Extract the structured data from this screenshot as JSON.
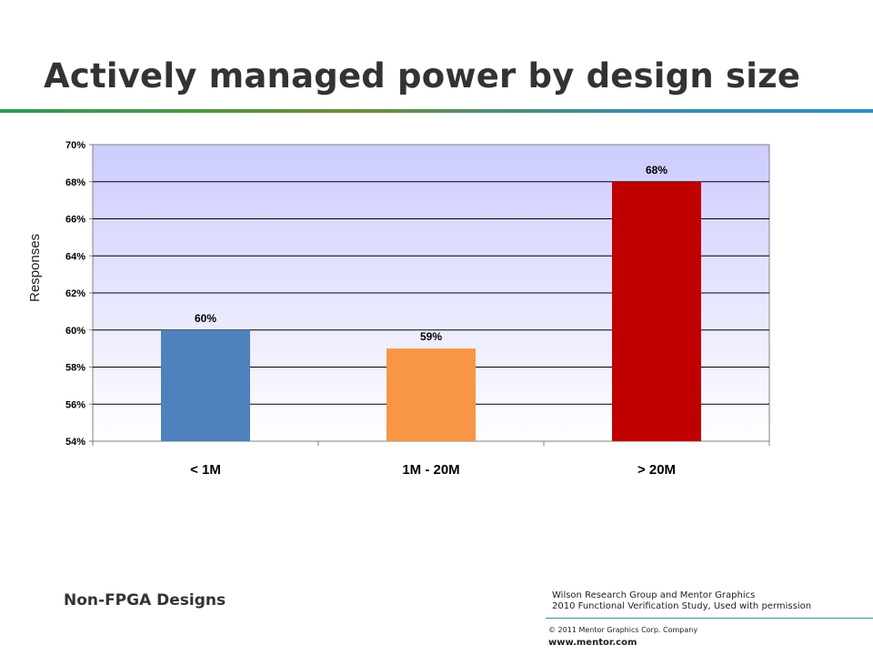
{
  "slide": {
    "title": "Actively managed power by design size",
    "subtitle_left": "Non-FPGA Designs",
    "credit_line1": "Wilson Research Group and Mentor Graphics",
    "credit_line2": "2010 Functional Verification Study,  Used with permission",
    "copyright": "© 2011 Mentor Graphics Corp. Company",
    "website": "www.mentor.com"
  },
  "colors": {
    "title_rule_start": "#2e9a56",
    "title_rule_end": "#2a8fc7",
    "plot_bg_top": "#ccccff",
    "plot_bg_bottom": "#ffffff"
  },
  "chart_data": {
    "type": "bar",
    "title": "",
    "xlabel": "",
    "ylabel": "Responses",
    "categories": [
      "< 1M",
      "1M - 20M",
      "> 20M"
    ],
    "values": [
      60,
      59,
      68
    ],
    "value_labels": [
      "60%",
      "59%",
      "68%"
    ],
    "bar_colors": [
      "#4f81bd",
      "#f79646",
      "#c00000"
    ],
    "ylim": [
      54,
      70
    ],
    "yticks": [
      54,
      56,
      58,
      60,
      62,
      64,
      66,
      68,
      70
    ],
    "ytick_labels": [
      "54%",
      "56%",
      "58%",
      "60%",
      "62%",
      "64%",
      "66%",
      "68%",
      "70%"
    ],
    "grid": true,
    "legend": "none"
  }
}
